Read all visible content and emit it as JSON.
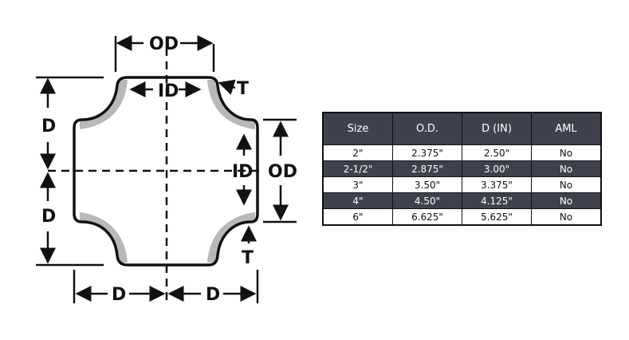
{
  "diagram": {
    "labels": {
      "od_top": "OD",
      "id_top": "ID",
      "t_top": "T",
      "d_left_upper": "D",
      "d_left_lower": "D",
      "id_right": "ID",
      "od_right": "OD",
      "t_bottom": "T",
      "d_bottom_left": "D",
      "d_bottom_right": "D"
    }
  },
  "table": {
    "headers": [
      "Size",
      "O.D.",
      "D (IN)",
      "AML"
    ],
    "rows": [
      [
        "2\"",
        "2.375\"",
        "2.50\"",
        "No"
      ],
      [
        "2-1/2\"",
        "2.875\"",
        "3.00\"",
        "No"
      ],
      [
        "3\"",
        "3.50\"",
        "3.375\"",
        "No"
      ],
      [
        "4\"",
        "4.50\"",
        "4.125\"",
        "No"
      ],
      [
        "6\"",
        "6.625\"",
        "5.625\"",
        "No"
      ]
    ],
    "colors": {
      "header_bg": "#40414f",
      "alt_row_bg": "#40414f",
      "row_bg": "#ffffff"
    }
  }
}
